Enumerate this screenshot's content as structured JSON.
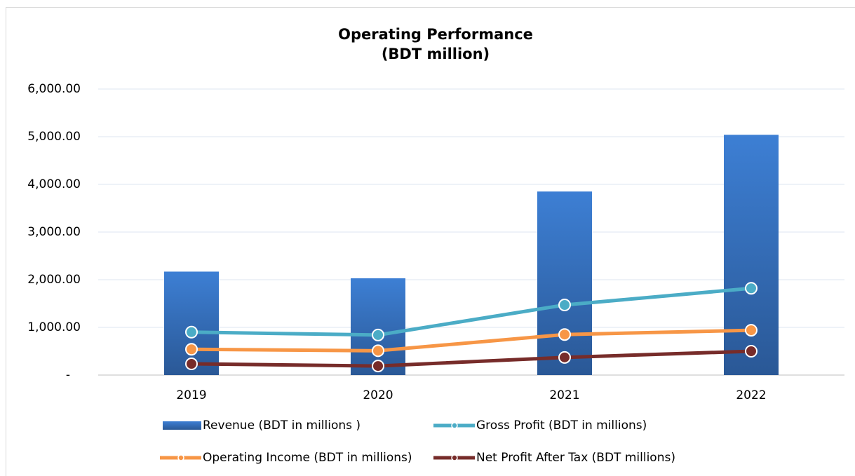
{
  "chart_data": {
    "type": "combo",
    "title": [
      "Operating Performance",
      "(BDT million)"
    ],
    "categories": [
      "2019",
      "2020",
      "2021",
      "2022"
    ],
    "series": [
      {
        "name": "Revenue (BDT in millions )",
        "type": "bar",
        "color": "#3a78c9",
        "values": [
          2170,
          2030,
          3850,
          5040
        ]
      },
      {
        "name": "Gross Profit (BDT in millions)",
        "type": "line",
        "color": "#4bacc6",
        "values": [
          900,
          840,
          1470,
          1820
        ]
      },
      {
        "name": "Operating Income (BDT in millions)",
        "type": "line",
        "color": "#f79646",
        "values": [
          540,
          510,
          850,
          940
        ]
      },
      {
        "name": "Net Profit After Tax (BDT millions)",
        "type": "line",
        "color": "#772c2a",
        "values": [
          235,
          190,
          370,
          500
        ]
      }
    ],
    "ylim": [
      0,
      6000
    ],
    "yticks": [
      {
        "value": 0,
        "label": "-"
      },
      {
        "value": 1000,
        "label": "1,000.00"
      },
      {
        "value": 2000,
        "label": "2,000.00"
      },
      {
        "value": 3000,
        "label": "3,000.00"
      },
      {
        "value": 4000,
        "label": "4,000.00"
      },
      {
        "value": 5000,
        "label": "5,000.00"
      },
      {
        "value": 6000,
        "label": "6,000.00"
      }
    ],
    "grid": true
  }
}
